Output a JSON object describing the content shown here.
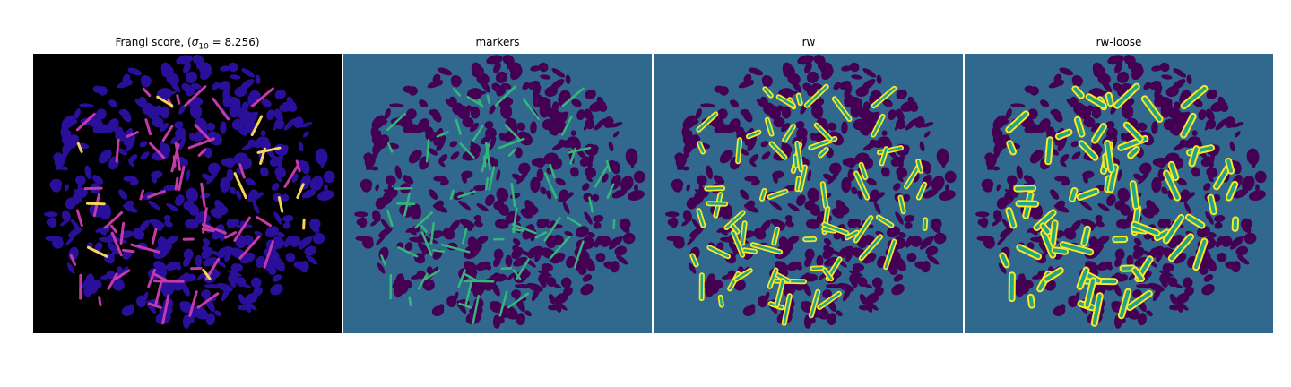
{
  "panels": [
    {
      "title": "Frangi score, (",
      "title_math": "σ",
      "title_sub": "10",
      "title_tail": " = 8.256)"
    },
    {
      "title": "markers"
    },
    {
      "title": "rw"
    },
    {
      "title": "rw-loose"
    }
  ],
  "colors": {
    "frangi_bg": "#000000",
    "frangi_blob": "#2a0f9a",
    "frangi_ridge": "#c43aa8",
    "frangi_hot": "#f7d35a",
    "seg_bg": "#31688e",
    "seg_blob": "#440154",
    "marker": "#35b779",
    "rw_yellow": "#fde725",
    "rw_green": "#21a685"
  }
}
